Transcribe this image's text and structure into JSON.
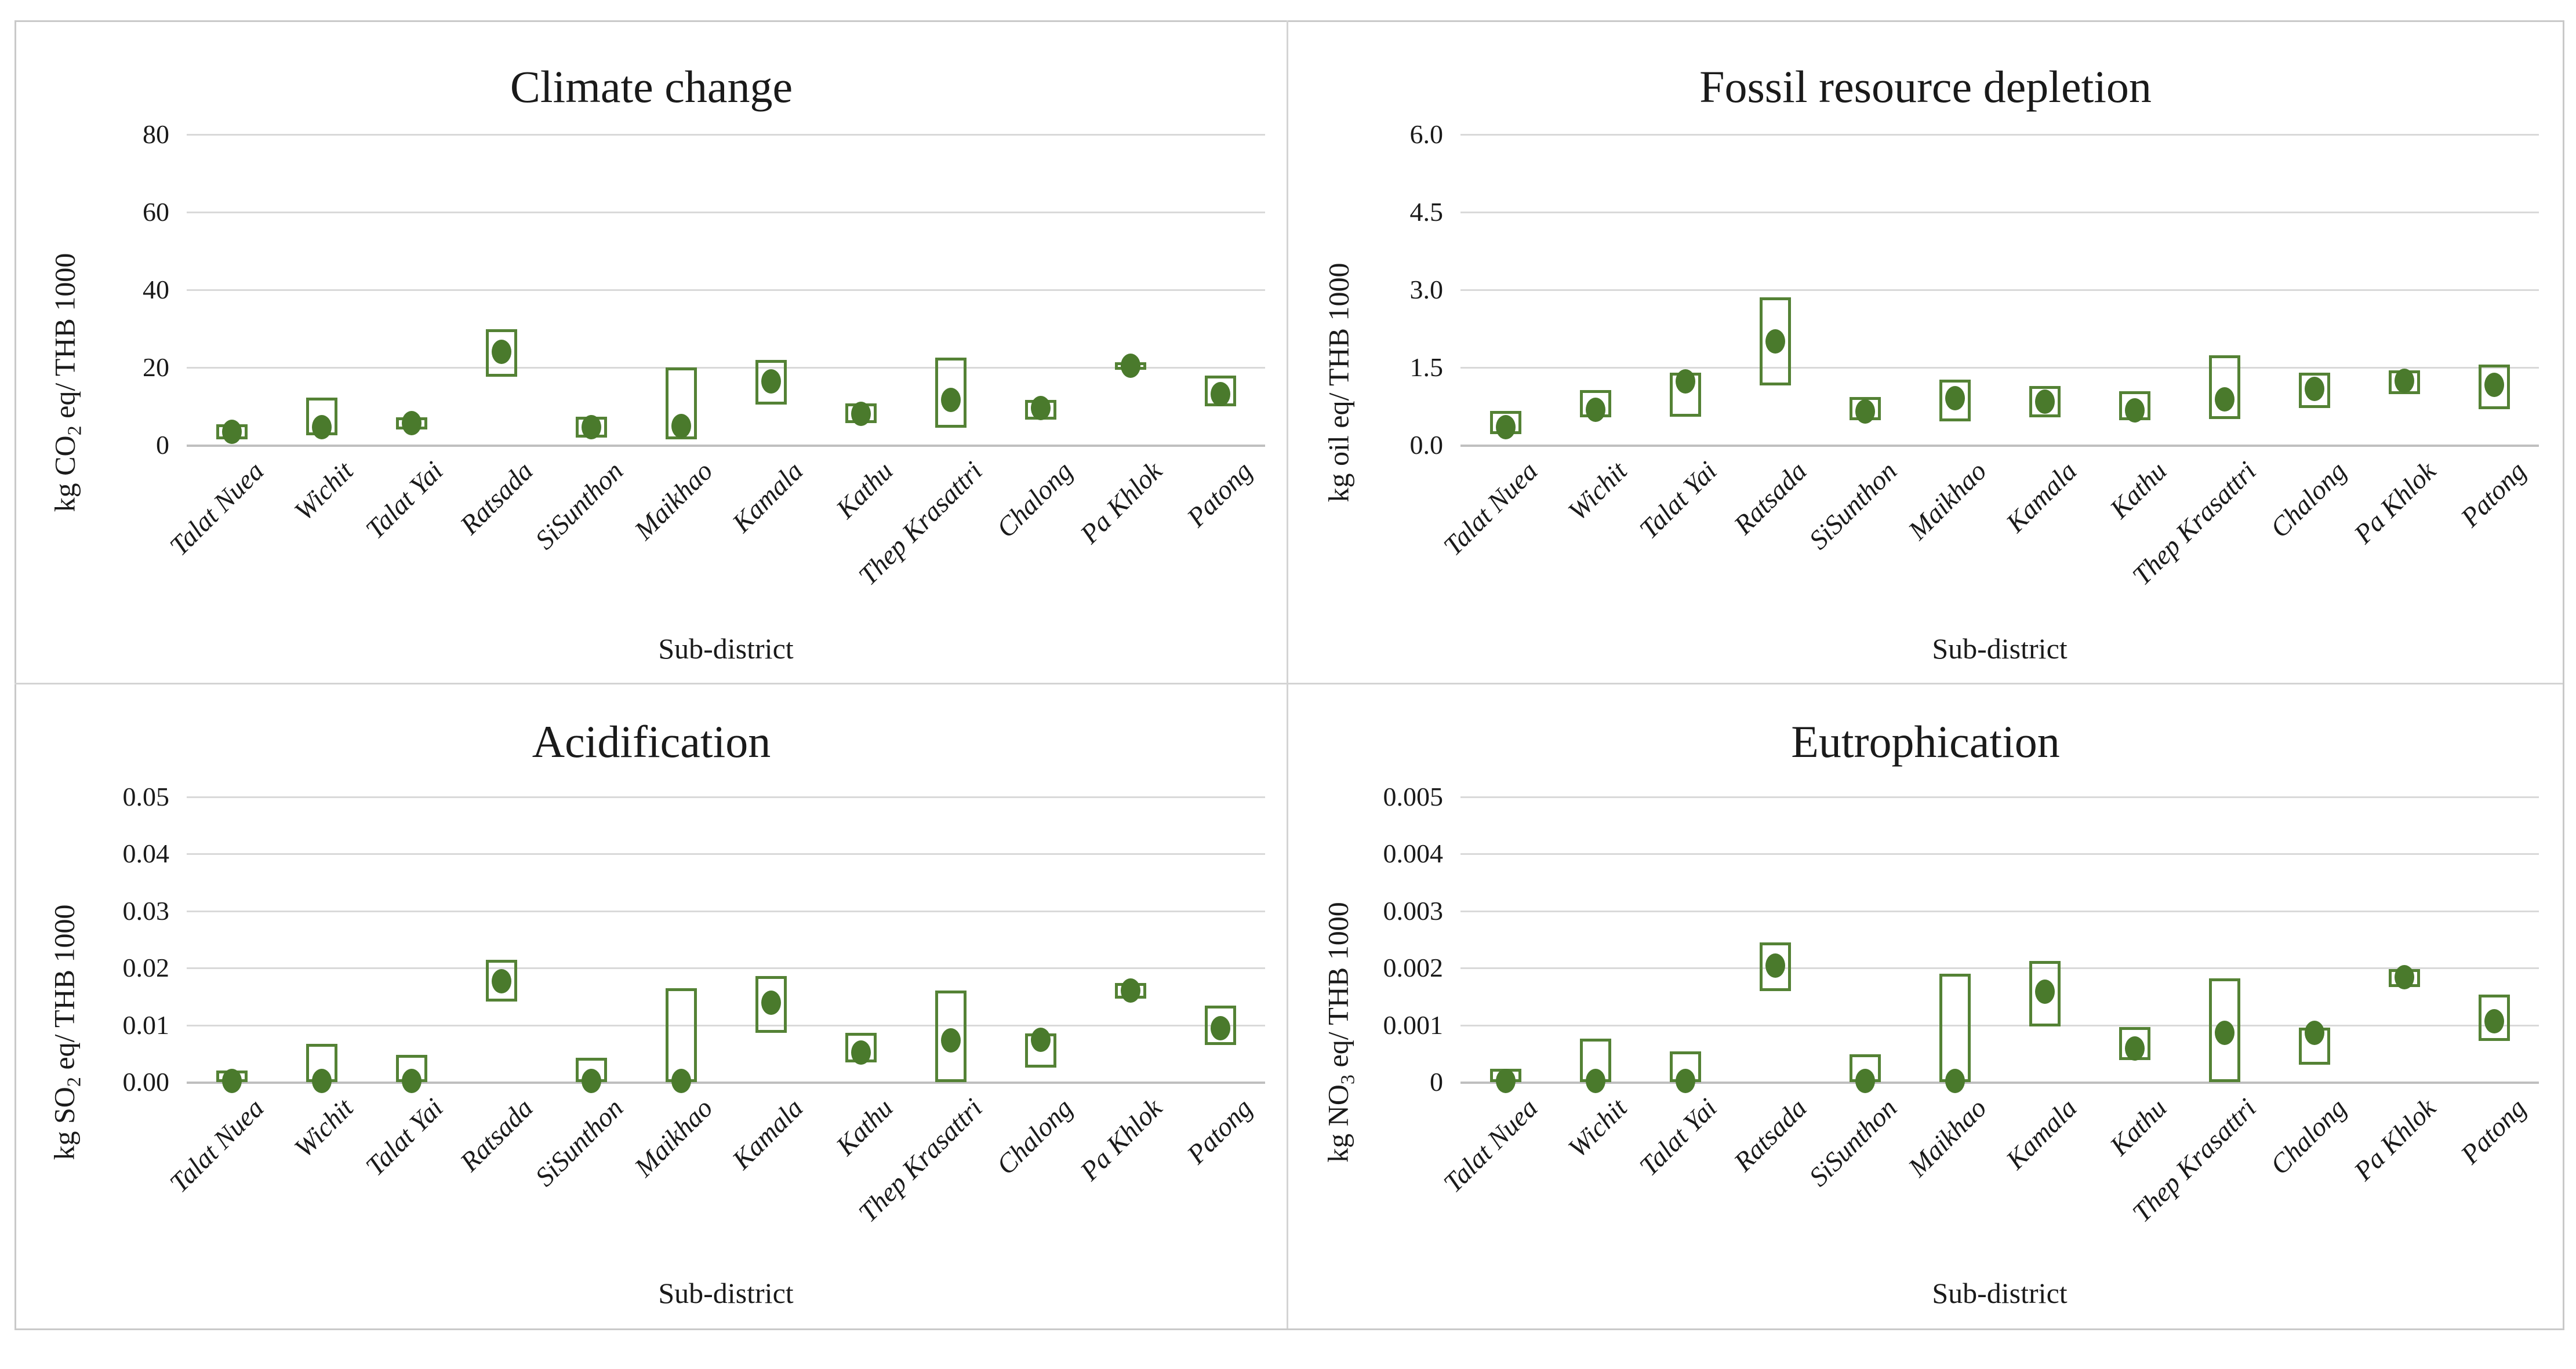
{
  "xlabel": "Sub-district",
  "categories": [
    "Talat Nuea",
    "Wichit",
    "Talat Yai",
    "Ratsada",
    "SiSunthon",
    "Maikhao",
    "Kamala",
    "Kathu",
    "Thep Krasattri",
    "Chalong",
    "Pa Khlok",
    "Patong"
  ],
  "colors": {
    "dot_green": "#4a7a2c",
    "box_green": "#548235",
    "gridline": "#d9d9d9",
    "zero_line": "#bfbfbf",
    "frame_border": "#c9c9c9",
    "text": "#1a1a1a"
  },
  "chart_data": [
    {
      "type": "scatter",
      "title": "Climate change",
      "ylabel_prefix": "kg CO",
      "ylabel_sub": "2",
      "ylabel_suffix": " eq/ THB 1000",
      "xlabel": "Sub-district",
      "ylim": [
        0,
        80
      ],
      "grid": true,
      "legend": "none",
      "ytick_values": [
        0,
        20,
        40,
        60,
        80
      ],
      "ytick_labels": [
        "0",
        "20",
        "40",
        "60",
        "80"
      ],
      "categories": [
        "Talat Nuea",
        "Wichit",
        "Talat Yai",
        "Ratsada",
        "SiSunthon",
        "Maikhao",
        "Kamala",
        "Kathu",
        "Thep Krasattri",
        "Chalong",
        "Pa Khlok",
        "Patong"
      ],
      "series": [
        {
          "name": "value (dot)",
          "values": [
            3.5,
            4.6,
            5.7,
            24,
            4.7,
            5,
            16.4,
            8,
            11.7,
            9.6,
            20.5,
            13.2
          ]
        },
        {
          "name": "range low (box bottom)",
          "values": [
            1.5,
            2.5,
            4,
            17.6,
            2,
            1.5,
            10.4,
            5.6,
            4.5,
            6.6,
            19.4,
            10
          ]
        },
        {
          "name": "range high (box top)",
          "values": [
            5.3,
            12.2,
            7.2,
            29.8,
            7.3,
            20,
            22,
            10.7,
            22.5,
            11.7,
            21.3,
            17.9
          ]
        }
      ]
    },
    {
      "type": "scatter",
      "title": "Fossil resource depletion",
      "ylabel_prefix": "kg oil eq/ THB 1000",
      "ylabel_sub": "",
      "ylabel_suffix": "",
      "xlabel": "Sub-district",
      "ylim": [
        0,
        6
      ],
      "grid": true,
      "legend": "none",
      "ytick_values": [
        0,
        1.5,
        3,
        4.5,
        6
      ],
      "ytick_labels": [
        "0.0",
        "1.5",
        "3.0",
        "4.5",
        "6.0"
      ],
      "categories": [
        "Talat Nuea",
        "Wichit",
        "Talat Yai",
        "Ratsada",
        "SiSunthon",
        "Maikhao",
        "Kamala",
        "Kathu",
        "Thep Krasattri",
        "Chalong",
        "Pa Khlok",
        "Patong"
      ],
      "series": [
        {
          "name": "value (dot)",
          "values": [
            0.35,
            0.68,
            1.23,
            2.0,
            0.65,
            0.91,
            0.84,
            0.67,
            0.88,
            1.09,
            1.24,
            1.16
          ]
        },
        {
          "name": "range low (box bottom)",
          "values": [
            0.21,
            0.54,
            0.55,
            1.15,
            0.48,
            0.46,
            0.54,
            0.48,
            0.5,
            0.72,
            0.99,
            0.69
          ]
        },
        {
          "name": "range high (box top)",
          "values": [
            0.66,
            1.06,
            1.4,
            2.85,
            0.93,
            1.27,
            1.14,
            1.04,
            1.73,
            1.4,
            1.44,
            1.56
          ]
        }
      ]
    },
    {
      "type": "scatter",
      "title": "Acidification",
      "ylabel_prefix": "kg SO",
      "ylabel_sub": "2",
      "ylabel_suffix": " eq/ THB 1000",
      "xlabel": "Sub-district",
      "ylim": [
        0,
        0.05
      ],
      "grid": true,
      "legend": "none",
      "ytick_values": [
        0,
        0.01,
        0.02,
        0.03,
        0.04,
        0.05
      ],
      "ytick_labels": [
        "0.00",
        "0.01",
        "0.02",
        "0.03",
        "0.04",
        "0.05"
      ],
      "categories": [
        "Talat Nuea",
        "Wichit",
        "Talat Yai",
        "Ratsada",
        "SiSunthon",
        "Maikhao",
        "Kamala",
        "Kathu",
        "Thep Krasattri",
        "Chalong",
        "Pa Khlok",
        "Patong"
      ],
      "series": [
        {
          "name": "value (dot)",
          "values": [
            0.0002,
            0.0002,
            0.0002,
            0.0177,
            0.0002,
            0.0002,
            0.0139,
            0.0052,
            0.0073,
            0.0074,
            0.0161,
            0.0095
          ]
        },
        {
          "name": "range low (box bottom)",
          "values": [
            0,
            0,
            0,
            0.0141,
            0,
            0,
            0.0086,
            0.0035,
            0,
            0.0025,
            0.0146,
            0.0065
          ]
        },
        {
          "name": "range high (box top)",
          "values": [
            0.002,
            0.0067,
            0.0048,
            0.0214,
            0.0043,
            0.0165,
            0.0186,
            0.0086,
            0.0161,
            0.0085,
            0.0174,
            0.0134
          ]
        }
      ]
    },
    {
      "type": "scatter",
      "title": "Eutrophication",
      "ylabel_prefix": "kg NO",
      "ylabel_sub": "3",
      "ylabel_suffix": " eq/ THB 1000",
      "xlabel": "Sub-district",
      "ylim": [
        0,
        0.005
      ],
      "grid": true,
      "legend": "none",
      "ytick_values": [
        0,
        0.001,
        0.002,
        0.003,
        0.004,
        0.005
      ],
      "ytick_labels": [
        "0",
        "0.001",
        "0.002",
        "0.003",
        "0.004",
        "0.005"
      ],
      "categories": [
        "Talat Nuea",
        "Wichit",
        "Talat Yai",
        "Ratsada",
        "SiSunthon",
        "Maikhao",
        "Kamala",
        "Kathu",
        "Thep Krasattri",
        "Chalong",
        "Pa Khlok",
        "Patong"
      ],
      "series": [
        {
          "name": "value (dot)",
          "values": [
            2e-05,
            2e-05,
            2e-05,
            0.00204,
            2e-05,
            2e-05,
            0.00159,
            0.00059,
            0.00086,
            0.00086,
            0.00184,
            0.00107
          ]
        },
        {
          "name": "range low (box bottom)",
          "values": [
            0,
            0,
            0,
            0.0016,
            0,
            0,
            0.00098,
            0.00039,
            0,
            0.0003,
            0.00167,
            0.00072
          ]
        },
        {
          "name": "range high (box top)",
          "values": [
            0.00023,
            0.00076,
            0.00054,
            0.00245,
            0.00049,
            0.0019,
            0.00212,
            0.00097,
            0.00182,
            0.00096,
            0.00198,
            0.00153
          ]
        }
      ]
    }
  ]
}
